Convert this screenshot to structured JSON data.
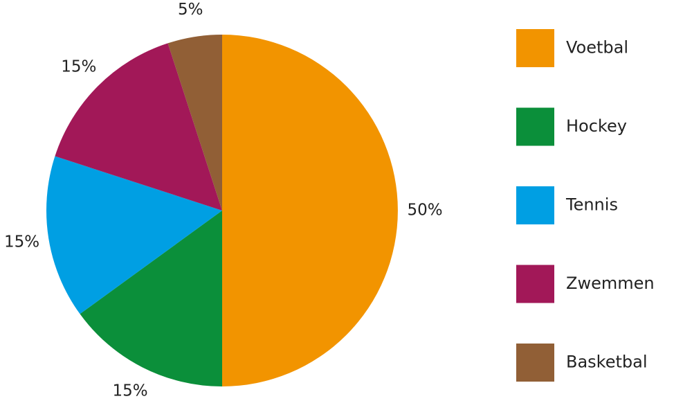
{
  "chart_data": {
    "type": "pie",
    "start_angle": "12 o'clock",
    "direction": "clockwise",
    "legend_position": "right",
    "slices": [
      {
        "label": "Voetbal",
        "value": 50,
        "value_label": "50%",
        "color": "#F29400"
      },
      {
        "label": "Hockey",
        "value": 15,
        "value_label": "15%",
        "color": "#0B8F3A"
      },
      {
        "label": "Tennis",
        "value": 15,
        "value_label": "15%",
        "color": "#009FE3"
      },
      {
        "label": "Zwemmen",
        "value": 15,
        "value_label": "15%",
        "color": "#A21858"
      },
      {
        "label": "Basketbal",
        "value": 5,
        "value_label": "5%",
        "color": "#915F36"
      }
    ]
  }
}
